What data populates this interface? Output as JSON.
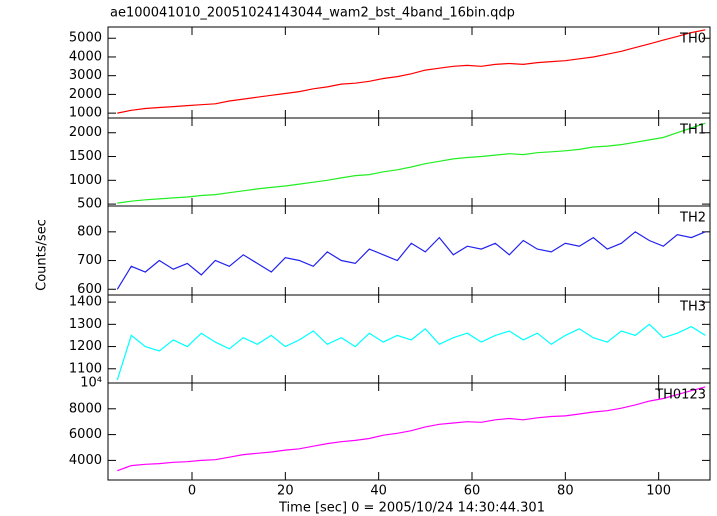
{
  "chart_data": [
    {
      "type": "line",
      "title": "ae100041010_20051024143044_wam2_bst_4band_16bin.qdp",
      "x": [
        -16,
        -13,
        -10,
        -7,
        -4,
        -1,
        2,
        5,
        8,
        11,
        14,
        17,
        20,
        23,
        26,
        29,
        32,
        35,
        38,
        41,
        44,
        47,
        50,
        53,
        56,
        59,
        62,
        65,
        68,
        71,
        74,
        77,
        80,
        83,
        86,
        89,
        92,
        95,
        98,
        101,
        104,
        107,
        110
      ],
      "series": [
        {
          "name": "TH0",
          "color": "#ff0000",
          "values": [
            1000,
            1150,
            1250,
            1300,
            1350,
            1400,
            1450,
            1500,
            1650,
            1750,
            1850,
            1950,
            2050,
            2150,
            2300,
            2400,
            2550,
            2600,
            2700,
            2850,
            2950,
            3100,
            3300,
            3400,
            3500,
            3550,
            3500,
            3600,
            3650,
            3600,
            3700,
            3750,
            3800,
            3900,
            4000,
            4150,
            4300,
            4500,
            4700,
            4900,
            5100,
            5300,
            5450
          ]
        }
      ],
      "xlim": [
        -18,
        111
      ],
      "ylim": [
        740,
        5600
      ],
      "yticks": [
        1000,
        2000,
        3000,
        4000,
        5000
      ]
    },
    {
      "type": "line",
      "x": [
        -16,
        -13,
        -10,
        -7,
        -4,
        -1,
        2,
        5,
        8,
        11,
        14,
        17,
        20,
        23,
        26,
        29,
        32,
        35,
        38,
        41,
        44,
        47,
        50,
        53,
        56,
        59,
        62,
        65,
        68,
        71,
        74,
        77,
        80,
        83,
        86,
        89,
        92,
        95,
        98,
        101,
        104,
        107,
        110
      ],
      "series": [
        {
          "name": "TH1",
          "color": "#22ee22",
          "values": [
            520,
            560,
            590,
            610,
            630,
            650,
            680,
            700,
            740,
            780,
            820,
            850,
            880,
            920,
            960,
            1000,
            1050,
            1100,
            1120,
            1180,
            1220,
            1280,
            1350,
            1400,
            1450,
            1480,
            1500,
            1530,
            1560,
            1540,
            1580,
            1600,
            1620,
            1650,
            1700,
            1720,
            1750,
            1800,
            1850,
            1900,
            2000,
            2100,
            2200
          ]
        }
      ],
      "xlim": [
        -18,
        111
      ],
      "ylim": [
        460,
        2310
      ],
      "yticks": [
        500,
        1000,
        1500,
        2000
      ]
    },
    {
      "type": "line",
      "y_label": "Counts/sec",
      "x": [
        -16,
        -13,
        -10,
        -7,
        -4,
        -1,
        2,
        5,
        8,
        11,
        14,
        17,
        20,
        23,
        26,
        29,
        32,
        35,
        38,
        41,
        44,
        47,
        50,
        53,
        56,
        59,
        62,
        65,
        68,
        71,
        74,
        77,
        80,
        83,
        86,
        89,
        92,
        95,
        98,
        101,
        104,
        107,
        110
      ],
      "series": [
        {
          "name": "TH2",
          "color": "#2222ee",
          "values": [
            600,
            680,
            660,
            700,
            670,
            690,
            650,
            700,
            680,
            720,
            690,
            660,
            710,
            700,
            680,
            730,
            700,
            690,
            740,
            720,
            700,
            760,
            730,
            780,
            720,
            750,
            740,
            760,
            720,
            770,
            740,
            730,
            760,
            750,
            780,
            740,
            760,
            800,
            770,
            750,
            790,
            780,
            800
          ]
        }
      ],
      "xlim": [
        -18,
        111
      ],
      "ylim": [
        580,
        890
      ],
      "yticks": [
        600,
        700,
        800
      ]
    },
    {
      "type": "line",
      "x": [
        -16,
        -13,
        -10,
        -7,
        -4,
        -1,
        2,
        5,
        8,
        11,
        14,
        17,
        20,
        23,
        26,
        29,
        32,
        35,
        38,
        41,
        44,
        47,
        50,
        53,
        56,
        59,
        62,
        65,
        68,
        71,
        74,
        77,
        80,
        83,
        86,
        89,
        92,
        95,
        98,
        101,
        104,
        107,
        110
      ],
      "series": [
        {
          "name": "TH3",
          "color": "#00ffff",
          "values": [
            1050,
            1250,
            1200,
            1180,
            1230,
            1200,
            1260,
            1220,
            1190,
            1240,
            1210,
            1250,
            1200,
            1230,
            1270,
            1210,
            1240,
            1200,
            1260,
            1220,
            1250,
            1230,
            1280,
            1210,
            1240,
            1260,
            1220,
            1250,
            1270,
            1230,
            1260,
            1210,
            1250,
            1280,
            1240,
            1220,
            1270,
            1250,
            1300,
            1240,
            1260,
            1290,
            1250
          ]
        }
      ],
      "xlim": [
        -18,
        111
      ],
      "ylim": [
        1036,
        1432
      ],
      "yticks": [
        1100,
        1200,
        1300,
        1400
      ]
    },
    {
      "type": "line",
      "x_label": "Time [sec] 0 = 2005/10/24 14:30:44.301",
      "x": [
        -16,
        -13,
        -10,
        -7,
        -4,
        -1,
        2,
        5,
        8,
        11,
        14,
        17,
        20,
        23,
        26,
        29,
        32,
        35,
        38,
        41,
        44,
        47,
        50,
        53,
        56,
        59,
        62,
        65,
        68,
        71,
        74,
        77,
        80,
        83,
        86,
        89,
        92,
        95,
        98,
        101,
        104,
        107,
        110
      ],
      "series": [
        {
          "name": "TH0123",
          "color": "#ff00ff",
          "values": [
            3200,
            3600,
            3700,
            3750,
            3850,
            3900,
            4000,
            4050,
            4250,
            4450,
            4550,
            4650,
            4800,
            4900,
            5100,
            5300,
            5450,
            5550,
            5700,
            5950,
            6100,
            6300,
            6600,
            6800,
            6900,
            7000,
            6950,
            7150,
            7250,
            7150,
            7300,
            7400,
            7450,
            7600,
            7750,
            7850,
            8050,
            8300,
            8600,
            8800,
            9100,
            9400,
            9700
          ]
        }
      ],
      "xlim": [
        -18,
        111
      ],
      "ylim": [
        2480,
        10000
      ],
      "yticks": [
        4000,
        6000,
        8000,
        {
          "value": 10000,
          "label": "10⁴"
        }
      ],
      "xticks": [
        0,
        20,
        40,
        60,
        80,
        100
      ]
    }
  ]
}
